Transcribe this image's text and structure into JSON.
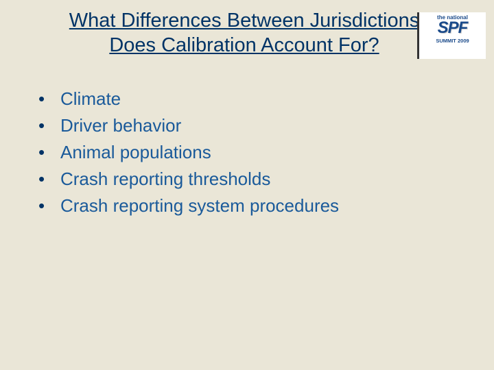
{
  "slide": {
    "background_color": "#eae6d7",
    "title": {
      "text": "What Differences Between Jurisdictions Does Calibration Account For?",
      "font_size": 29,
      "color": "#003366",
      "underline": true
    },
    "logo": {
      "top_text": "the national",
      "main_text": "SPF",
      "bottom_text": "SUMMIT 2009",
      "text_color": "#1a4a8a"
    },
    "bullets": {
      "marker_color": "#003366",
      "text_color": "#1a5a9a",
      "font_size": 26,
      "items": [
        "Climate",
        "Driver behavior",
        "Animal populations",
        "Crash reporting thresholds",
        "Crash reporting system procedures"
      ]
    }
  }
}
